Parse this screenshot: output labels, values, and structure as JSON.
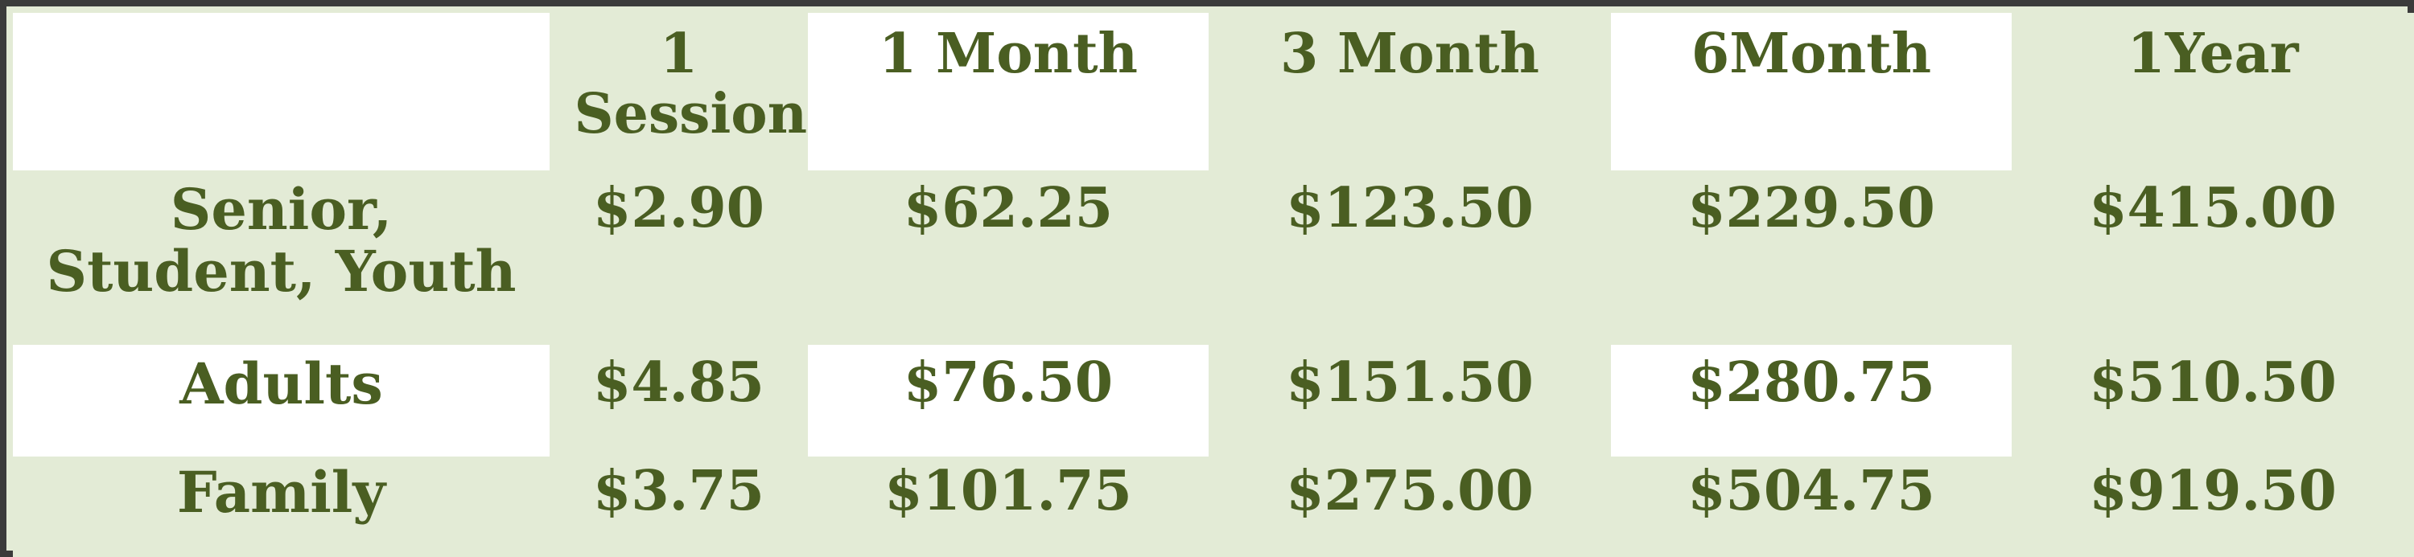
{
  "table": {
    "headers": [
      "",
      "1 Session",
      "1 Month",
      "3 Month",
      "6Month",
      "1Year"
    ],
    "rows": [
      {
        "label": "Senior, Student, Youth",
        "values": [
          "$2.90",
          "$62.25",
          "$123.50",
          "$229.50",
          "$415.00"
        ]
      },
      {
        "label": "Adults",
        "values": [
          "$4.85",
          "$76.50",
          "$151.50",
          "$280.75",
          "$510.50"
        ]
      },
      {
        "label": "Family",
        "values": [
          "$3.75",
          "$101.75",
          "$275.00",
          "$504.75",
          "$919.50"
        ]
      }
    ]
  },
  "colors": {
    "text": "#4a5e22",
    "band": "#e3ebd6",
    "white": "#ffffff",
    "border": "#3b3b3b"
  }
}
